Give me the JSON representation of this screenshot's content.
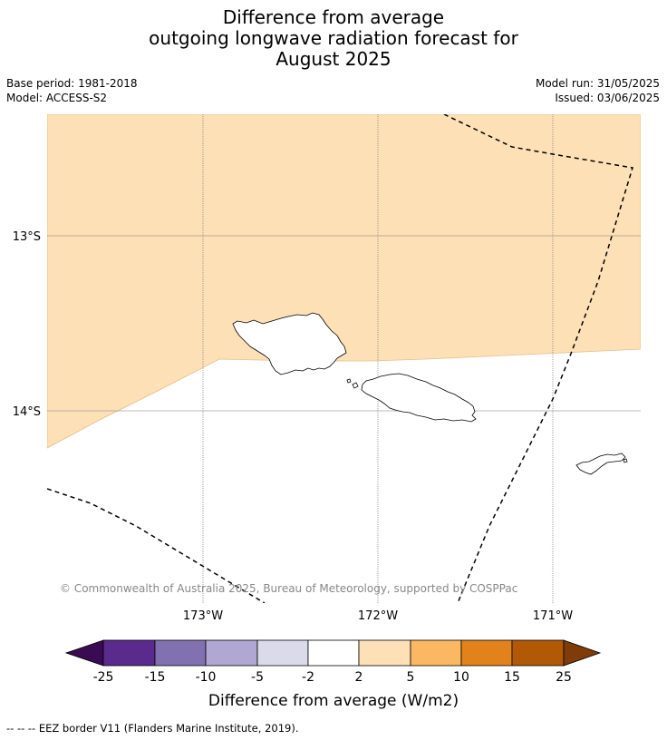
{
  "title": {
    "line1": "Difference from average",
    "line2": "outgoing longwave radiation forecast for",
    "line3": "August 2025"
  },
  "meta": {
    "base_period": "Base period: 1981-2018",
    "model": "Model: ACCESS-S2",
    "model_run": "Model run: 31/05/2025",
    "issued": "Issued: 03/06/2025"
  },
  "map": {
    "lat_labels": [
      "13°S",
      "14°S"
    ],
    "lon_labels": [
      "173°W",
      "172°W",
      "171°W"
    ],
    "copyright": "© Commonwealth of Australia 2025, Bureau of Meteorology, supported by COSPPac",
    "fill_color": "#fde0b6",
    "fill_category": "2 to 5"
  },
  "colorbar": {
    "ticks": [
      "-25",
      "-15",
      "-10",
      "-5",
      "-2",
      "2",
      "5",
      "10",
      "15",
      "25"
    ],
    "colors": [
      "#3a0a52",
      "#5a2a8c",
      "#8271b0",
      "#b0a8d2",
      "#dadaeb",
      "#ffffff",
      "#fde0b6",
      "#fbb862",
      "#e1821b",
      "#b15905",
      "#7f3b08"
    ],
    "label": "Difference from average (W/m2)"
  },
  "footnote": "--  --  -- EEZ border V11 (Flanders Marine Institute, 2019)."
}
